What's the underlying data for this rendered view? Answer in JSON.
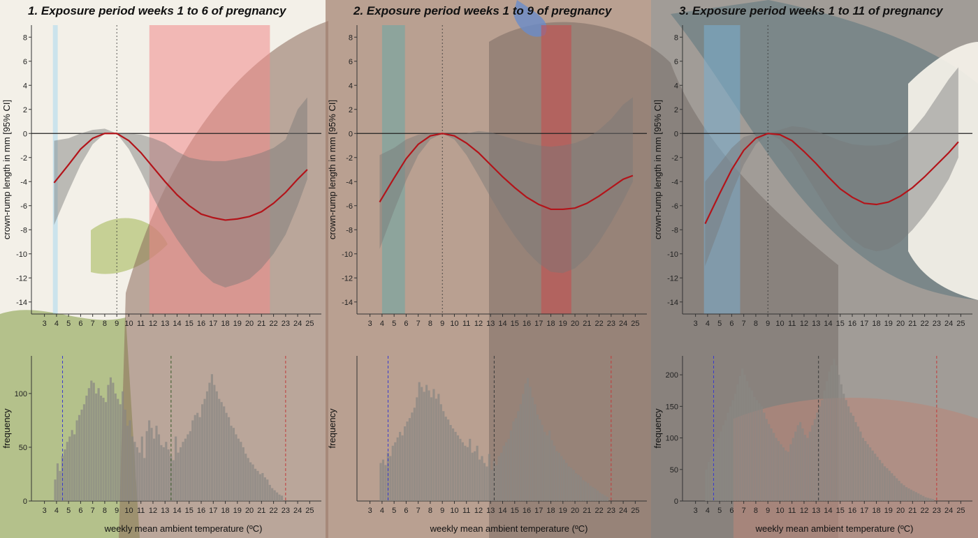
{
  "chart_data": [
    {
      "type": "line",
      "title": "1. Exposure period weeks 1 to 6 of pregnancy",
      "ylabel": "crown-rump length in mm [95% CI]",
      "xlim": [
        2.5,
        25.5
      ],
      "ylim": [
        -15,
        9
      ],
      "yticks": [
        8,
        6,
        4,
        2,
        0,
        -2,
        -4,
        -6,
        -8,
        -10,
        -12,
        -14
      ],
      "xticks": [
        3,
        4,
        5,
        6,
        7,
        8,
        9,
        10,
        11,
        12,
        13,
        14,
        15,
        16,
        17,
        18,
        19,
        20,
        21,
        22,
        23,
        24,
        25
      ],
      "reference_temp": 9,
      "curve": {
        "x": [
          3.8,
          5,
          6,
          7,
          8,
          9,
          10,
          11,
          12,
          13,
          14,
          15,
          16,
          17,
          18,
          19,
          20,
          21,
          22,
          23,
          24,
          24.8
        ],
        "y": [
          -4.1,
          -2.6,
          -1.3,
          -0.4,
          0,
          0,
          -0.6,
          -1.6,
          -2.8,
          -4.0,
          -5.1,
          -6.0,
          -6.7,
          -7.0,
          -7.2,
          -7.1,
          -6.9,
          -6.5,
          -5.8,
          -4.9,
          -3.8,
          -3.0
        ],
        "ci_lower": [
          -7.6,
          -4.8,
          -2.6,
          -0.9,
          0,
          0,
          -1.3,
          -3.2,
          -5.3,
          -7.2,
          -8.8,
          -10.2,
          -11.5,
          -12.4,
          -12.8,
          -12.5,
          -12.1,
          -11.2,
          -10.0,
          -8.4,
          -6.0,
          -3.8
        ],
        "ci_upper": [
          -0.6,
          -0.4,
          0,
          0.3,
          0.4,
          0,
          0,
          -0.1,
          -0.4,
          -0.8,
          -1.5,
          -2.0,
          -2.2,
          -2.3,
          -2.3,
          -2.1,
          -1.9,
          -1.6,
          -1.2,
          -0.5,
          2.0,
          3.0
        ]
      },
      "highlight_bands": [
        {
          "from": 3.7,
          "to": 4.1,
          "color": "#a9d9ee"
        },
        {
          "from": 11.7,
          "to": 21.7,
          "color": "#f08a8a"
        }
      ],
      "histogram": {
        "ylabel": "frequency",
        "ylim": [
          0,
          135
        ],
        "yticks": [
          0,
          50,
          100
        ],
        "xlabel": "weekly mean ambient temperature (ºC)",
        "vlines": [
          {
            "x": 4.5,
            "color": "#3a3acf"
          },
          {
            "x": 13.5,
            "color": "#3a5a2a"
          },
          {
            "x": 23,
            "color": "#c23a3a"
          }
        ],
        "x_start": 3.8,
        "bin_width": 0.2,
        "counts": [
          20,
          35,
          28,
          42,
          48,
          55,
          60,
          66,
          62,
          75,
          80,
          85,
          90,
          98,
          105,
          112,
          110,
          100,
          105,
          98,
          96,
          92,
          108,
          115,
          110,
          100,
          95,
          90,
          102,
          85,
          70,
          75,
          60,
          55,
          50,
          45,
          60,
          40,
          65,
          75,
          68,
          58,
          70,
          62,
          52,
          50,
          55,
          48,
          42,
          38,
          60,
          45,
          50,
          55,
          58,
          62,
          65,
          75,
          80,
          82,
          78,
          90,
          95,
          102,
          110,
          118,
          108,
          102,
          95,
          92,
          88,
          82,
          78,
          70,
          68,
          62,
          58,
          55,
          50,
          44,
          40,
          36,
          34,
          30,
          28,
          25,
          26,
          22,
          20,
          15,
          12,
          10,
          8,
          6,
          5
        ]
      }
    },
    {
      "type": "line",
      "title": "2. Exposure period weeks 1 to 9 of pregnancy",
      "ylabel": "crown-rump length in mm [95% CI]",
      "xlim": [
        2.5,
        25.5
      ],
      "ylim": [
        -15,
        9
      ],
      "yticks": [
        8,
        6,
        4,
        2,
        0,
        -2,
        -4,
        -6,
        -8,
        -10,
        -12,
        -14
      ],
      "xticks": [
        3,
        4,
        5,
        6,
        7,
        8,
        9,
        10,
        11,
        12,
        13,
        14,
        15,
        16,
        17,
        18,
        19,
        20,
        21,
        22,
        23,
        24,
        25
      ],
      "reference_temp": 9,
      "curve": {
        "x": [
          3.8,
          5,
          6,
          7,
          8,
          9,
          10,
          11,
          12,
          13,
          14,
          15,
          16,
          17,
          18,
          19,
          20,
          21,
          22,
          23,
          24,
          24.8
        ],
        "y": [
          -5.7,
          -3.7,
          -2.1,
          -0.9,
          -0.2,
          0,
          -0.2,
          -0.8,
          -1.6,
          -2.6,
          -3.6,
          -4.5,
          -5.3,
          -5.9,
          -6.3,
          -6.3,
          -6.2,
          -5.8,
          -5.2,
          -4.5,
          -3.8,
          -3.5
        ],
        "ci_lower": [
          -9.6,
          -6.4,
          -3.9,
          -1.8,
          -0.5,
          0,
          -0.5,
          -1.8,
          -3.5,
          -5.3,
          -7.0,
          -8.5,
          -9.8,
          -10.8,
          -11.5,
          -11.6,
          -11.2,
          -10.3,
          -9.0,
          -7.4,
          -5.6,
          -4.0
        ],
        "ci_upper": [
          -1.8,
          -1.2,
          -0.5,
          -0.1,
          0,
          0,
          0,
          0,
          0.2,
          0.1,
          -0.2,
          -0.5,
          -0.8,
          -1.0,
          -1.1,
          -1.0,
          -0.8,
          -0.4,
          0.3,
          1.2,
          2.4,
          3.0
        ]
      },
      "highlight_bands": [
        {
          "from": 4.0,
          "to": 5.9,
          "color": "#6aa7a6"
        },
        {
          "from": 17.2,
          "to": 19.7,
          "color": "#c8484a"
        }
      ],
      "histogram": {
        "ylabel": "frequency",
        "ylim": [
          0,
          210
        ],
        "yticks": [],
        "xlabel": "weekly mean ambient temperature (ºC)",
        "vlines": [
          {
            "x": 4.5,
            "color": "#3a3acf"
          },
          {
            "x": 13.3,
            "color": "#3a3a3a"
          },
          {
            "x": 23,
            "color": "#c23a3a"
          }
        ],
        "x_start": 3.8,
        "bin_width": 0.2,
        "counts": [
          55,
          60,
          52,
          70,
          65,
          80,
          85,
          92,
          100,
          95,
          108,
          115,
          120,
          128,
          135,
          150,
          172,
          165,
          158,
          168,
          160,
          150,
          162,
          148,
          155,
          140,
          130,
          122,
          118,
          110,
          105,
          100,
          95,
          90,
          85,
          80,
          78,
          90,
          70,
          72,
          80,
          60,
          65,
          55,
          50,
          68,
          45,
          58,
          52,
          65,
          70,
          80,
          85,
          90,
          102,
          115,
          120,
          130,
          140,
          155,
          170,
          178,
          165,
          150,
          140,
          125,
          118,
          110,
          100,
          95,
          102,
          88,
          80,
          72,
          70,
          65,
          60,
          55,
          50,
          48,
          45,
          40,
          38,
          35,
          30,
          28,
          26,
          22,
          20,
          18,
          15,
          12,
          10,
          8,
          6
        ]
      }
    },
    {
      "type": "line",
      "title": "3. Exposure period weeks 1 to 11 of pregnancy",
      "ylabel": "crown-rump length in mm [95% CI]",
      "xlim": [
        2.5,
        25.5
      ],
      "ylim": [
        -15,
        9
      ],
      "yticks": [
        8,
        6,
        4,
        2,
        0,
        -2,
        -4,
        -6,
        -8,
        -10,
        -12,
        -14
      ],
      "xticks": [
        3,
        4,
        5,
        6,
        7,
        8,
        9,
        10,
        11,
        12,
        13,
        14,
        15,
        16,
        17,
        18,
        19,
        20,
        21,
        22,
        23,
        24,
        25
      ],
      "reference_temp": 9,
      "curve": {
        "x": [
          3.8,
          5,
          6,
          7,
          8,
          9,
          10,
          11,
          12,
          13,
          14,
          15,
          16,
          17,
          18,
          19,
          20,
          21,
          22,
          23,
          24,
          24.8
        ],
        "y": [
          -7.5,
          -5.0,
          -3.0,
          -1.4,
          -0.4,
          0,
          -0.1,
          -0.6,
          -1.5,
          -2.5,
          -3.6,
          -4.6,
          -5.3,
          -5.8,
          -5.9,
          -5.7,
          -5.2,
          -4.5,
          -3.6,
          -2.6,
          -1.6,
          -0.7
        ],
        "ci_lower": [
          -11.0,
          -7.8,
          -5.0,
          -2.6,
          -0.9,
          0,
          -0.5,
          -1.6,
          -3.2,
          -4.8,
          -6.4,
          -7.8,
          -8.8,
          -9.5,
          -9.8,
          -9.6,
          -9.0,
          -8.0,
          -6.8,
          -5.4,
          -3.8,
          -2.0
        ],
        "ci_upper": [
          -4.0,
          -2.5,
          -1.2,
          -0.3,
          0,
          0,
          0.3,
          0.6,
          0.5,
          0.2,
          -0.2,
          -0.6,
          -0.9,
          -1.0,
          -1.0,
          -0.9,
          -0.5,
          0.3,
          1.5,
          3.0,
          4.5,
          5.5
        ]
      },
      "highlight_bands": [
        {
          "from": 3.7,
          "to": 6.7,
          "color": "#7aaed0"
        }
      ],
      "histogram": {
        "ylabel": "frequency",
        "ylim": [
          0,
          230
        ],
        "yticks": [
          0,
          50,
          100,
          150,
          200
        ],
        "xlabel": "weekly mean ambient temperature (ºC)",
        "vlines": [
          {
            "x": 4.5,
            "color": "#3a3acf"
          },
          {
            "x": 13.2,
            "color": "#3a3a3a"
          },
          {
            "x": 23,
            "color": "#c23a3a"
          }
        ],
        "x_start": 3.8,
        "bin_width": 0.2,
        "counts": [
          50,
          62,
          70,
          80,
          92,
          100,
          110,
          120,
          128,
          140,
          150,
          160,
          170,
          185,
          198,
          210,
          200,
          190,
          180,
          175,
          165,
          160,
          155,
          150,
          140,
          130,
          122,
          115,
          108,
          100,
          95,
          90,
          85,
          80,
          78,
          90,
          100,
          110,
          120,
          125,
          115,
          105,
          100,
          110,
          120,
          130,
          140,
          150,
          160,
          175,
          190,
          205,
          215,
          225,
          215,
          200,
          185,
          170,
          160,
          150,
          140,
          135,
          125,
          118,
          110,
          100,
          95,
          90,
          85,
          80,
          75,
          70,
          65,
          60,
          55,
          52,
          48,
          44,
          40,
          36,
          32,
          28,
          25,
          22,
          20,
          18,
          16,
          14,
          12,
          10,
          8,
          6,
          5,
          4,
          3
        ]
      }
    }
  ]
}
